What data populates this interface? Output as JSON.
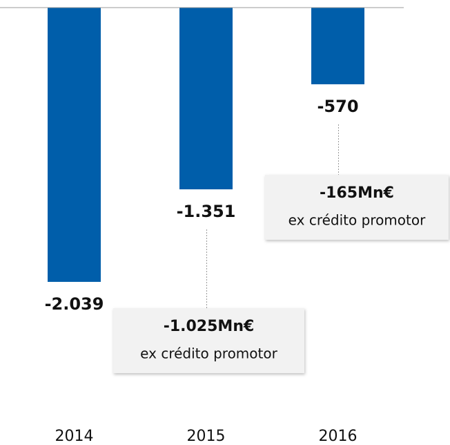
{
  "chart_data": {
    "type": "bar",
    "categories": [
      "2014",
      "2015",
      "2016"
    ],
    "values": [
      -2039,
      -1351,
      -570
    ],
    "value_labels": [
      "-2.039",
      "-1.351",
      "-570"
    ],
    "color": "#005eaa",
    "ylim": [
      -3000,
      0
    ],
    "annotations": [
      {
        "category": "2015",
        "label": "-1.025Mn€",
        "text": "ex crédito promotor"
      },
      {
        "category": "2016",
        "label": "-165Mn€",
        "text": "ex crédito promotor"
      }
    ]
  }
}
